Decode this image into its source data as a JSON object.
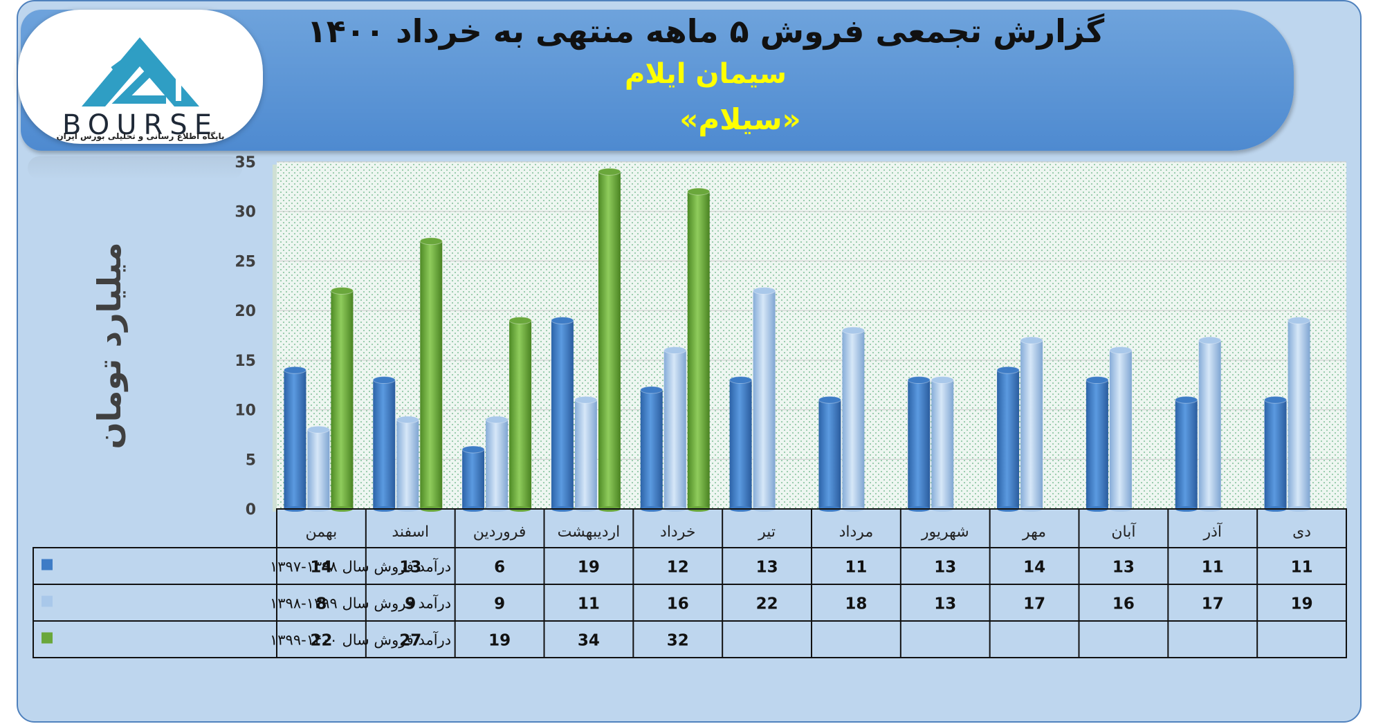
{
  "header": {
    "title": "گزارش تجمعی فروش ۵ ماهه منتهی به خرداد ۱۴۰۰",
    "company": "سیمان ایلام",
    "ticker": "«سیلام»",
    "logo_text": "BOURSE",
    "logo_tagline": "پایگاه اطلاع رسانی و تحلیلی بورس ایران"
  },
  "colors": {
    "series1": "#3e7cc6",
    "series2": "#a9c8ea",
    "series3": "#6aa73b",
    "plot_bg": "#eaf4ef",
    "grid": "#c9c9c9"
  },
  "chart_data": {
    "type": "bar",
    "ylabel": "میلیارد تومان",
    "ylim": [
      0,
      35
    ],
    "yticks": [
      "0",
      "5",
      "10",
      "15",
      "20",
      "25",
      "30",
      "35"
    ],
    "grid": true,
    "categories": [
      "بهمن",
      "اسفند",
      "فروردین",
      "اردیبهشت",
      "خرداد",
      "تیر",
      "مرداد",
      "شهریور",
      "مهر",
      "آبان",
      "آذر",
      "دی"
    ],
    "series": [
      {
        "name": "درآمد فروش سال ۱۳۹۸-۱۳۹۷",
        "values": [
          14,
          13,
          6,
          19,
          12,
          13,
          11,
          13,
          14,
          13,
          11,
          11
        ]
      },
      {
        "name": "درآمد فروش سال ۱۳۹۹-۱۳۹۸",
        "values": [
          8,
          9,
          9,
          11,
          16,
          22,
          18,
          13,
          17,
          16,
          17,
          19
        ]
      },
      {
        "name": "درآمد فروش سال ۱۴۰۰-۱۳۹۹",
        "values": [
          22,
          27,
          19,
          34,
          32,
          null,
          null,
          null,
          null,
          null,
          null,
          null
        ]
      }
    ]
  }
}
